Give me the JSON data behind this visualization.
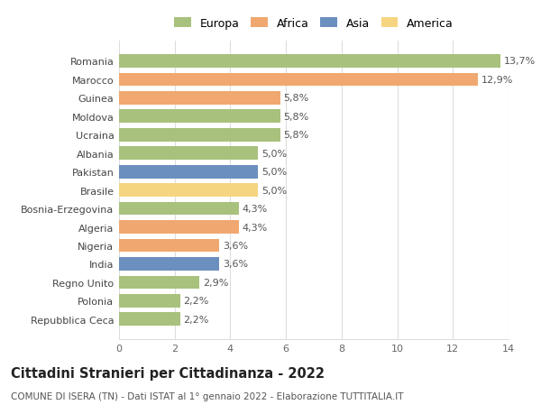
{
  "categories": [
    "Repubblica Ceca",
    "Polonia",
    "Regno Unito",
    "India",
    "Nigeria",
    "Algeria",
    "Bosnia-Erzegovina",
    "Brasile",
    "Pakistan",
    "Albania",
    "Ucraina",
    "Moldova",
    "Guinea",
    "Marocco",
    "Romania"
  ],
  "values": [
    2.2,
    2.2,
    2.9,
    3.6,
    3.6,
    4.3,
    4.3,
    5.0,
    5.0,
    5.0,
    5.8,
    5.8,
    5.8,
    12.9,
    13.7
  ],
  "labels": [
    "2,2%",
    "2,2%",
    "2,9%",
    "3,6%",
    "3,6%",
    "4,3%",
    "4,3%",
    "5,0%",
    "5,0%",
    "5,0%",
    "5,8%",
    "5,8%",
    "5,8%",
    "12,9%",
    "13,7%"
  ],
  "colors": [
    "#a8c17c",
    "#a8c17c",
    "#a8c17c",
    "#6b8fbf",
    "#f0a870",
    "#f0a870",
    "#a8c17c",
    "#f5d580",
    "#6b8fbf",
    "#a8c17c",
    "#a8c17c",
    "#a8c17c",
    "#f0a870",
    "#f0a870",
    "#a8c17c"
  ],
  "legend_labels": [
    "Europa",
    "Africa",
    "Asia",
    "America"
  ],
  "legend_colors": [
    "#a8c17c",
    "#f0a870",
    "#6b8fbf",
    "#f5d580"
  ],
  "title": "Cittadini Stranieri per Cittadinanza - 2022",
  "subtitle": "COMUNE DI ISERA (TN) - Dati ISTAT al 1° gennaio 2022 - Elaborazione TUTTITALIA.IT",
  "xlim": [
    0,
    14
  ],
  "xticks": [
    0,
    2,
    4,
    6,
    8,
    10,
    12,
    14
  ],
  "bar_height": 0.72,
  "background_color": "#ffffff",
  "grid_color": "#dddddd",
  "label_fontsize": 8,
  "tick_fontsize": 8,
  "ytick_fontsize": 8,
  "title_fontsize": 10.5,
  "subtitle_fontsize": 7.5
}
